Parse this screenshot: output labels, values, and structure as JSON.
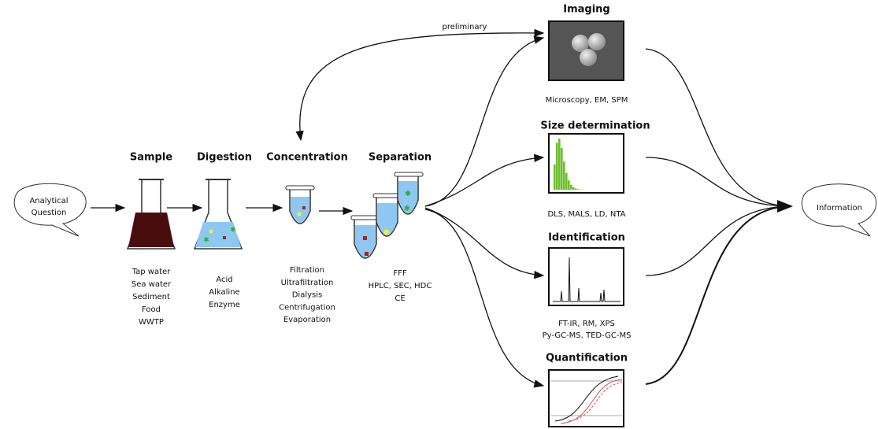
{
  "start_node": {
    "lines": [
      "Analytical",
      "Question"
    ]
  },
  "end_node": {
    "label": "Information"
  },
  "feedback_label": "preliminary",
  "stages": [
    {
      "title": "Sample",
      "items": [
        "Tap water",
        "Sea water",
        "Sediment",
        "Food",
        "WWTP"
      ]
    },
    {
      "title": "Digestion",
      "items": [
        "Acid",
        "Alkaline",
        "Enzyme"
      ]
    },
    {
      "title": "Concentration",
      "items": [
        "Filtration",
        "Ultrafiltration",
        "Dialysis",
        "Centrifugation",
        "Evaporation"
      ]
    },
    {
      "title": "Separation",
      "items": [
        "FFF",
        "HPLC, SEC, HDC",
        "CE"
      ]
    }
  ],
  "methods": [
    {
      "title": "Imaging",
      "items": [
        "Microscopy, EM, SPM"
      ]
    },
    {
      "title": "Size determination",
      "items": [
        "DLS, MALS, LD, NTA"
      ]
    },
    {
      "title": "Identification",
      "items": [
        "FT-IR, RM, XPS",
        "Py-GC-MS, TED-GC-MS"
      ]
    },
    {
      "title": "Quantification",
      "items": []
    }
  ]
}
